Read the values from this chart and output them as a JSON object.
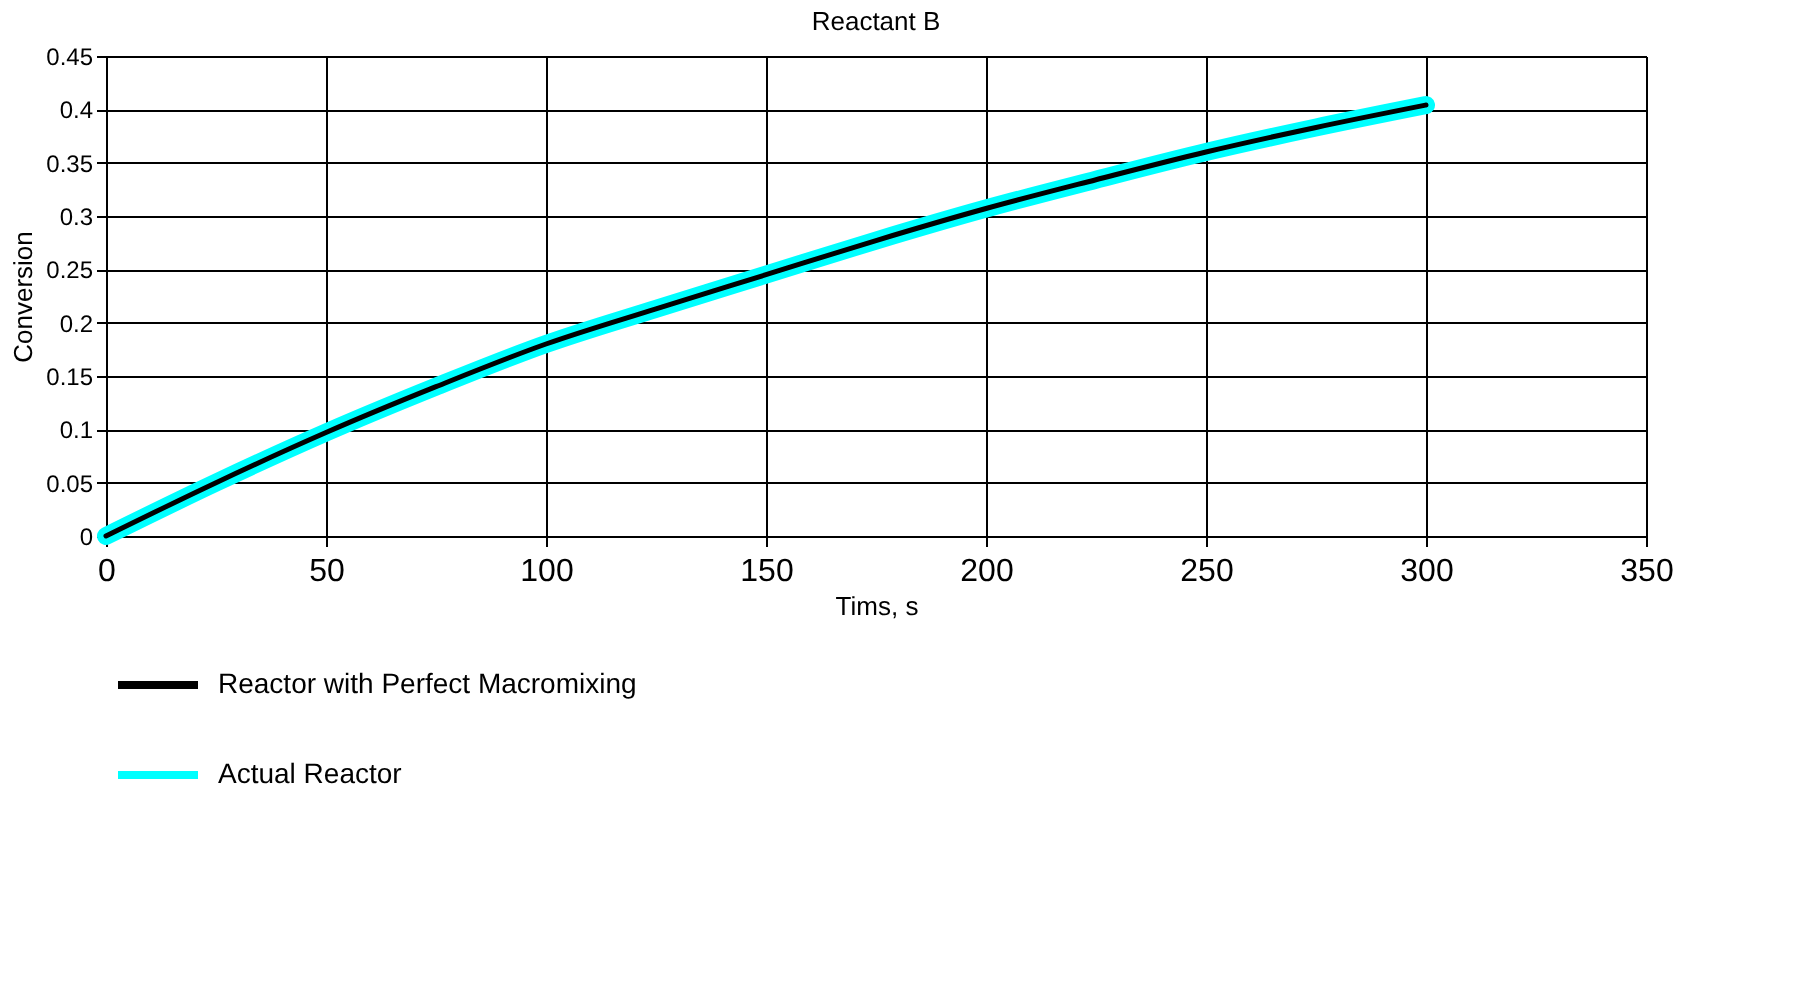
{
  "chart_data": {
    "type": "line",
    "title": "Reactant B",
    "xlabel": "Tims, s",
    "ylabel": "Conversion",
    "x": [
      0,
      25,
      50,
      75,
      100,
      125,
      150,
      175,
      200,
      225,
      250,
      275,
      300
    ],
    "series": [
      {
        "name": "Actual Reactor",
        "color": "#00ffff",
        "values": [
          0,
          0.05,
          0.097,
          0.14,
          0.18,
          0.213,
          0.245,
          0.277,
          0.307,
          0.334,
          0.36,
          0.383,
          0.404
        ]
      },
      {
        "name": "Reactor with Perfect Macromixing",
        "color": "#000000",
        "values": [
          0,
          0.05,
          0.097,
          0.14,
          0.18,
          0.213,
          0.245,
          0.277,
          0.307,
          0.334,
          0.36,
          0.383,
          0.404
        ]
      }
    ],
    "xlim": [
      0,
      350
    ],
    "xticks": [
      0,
      50,
      100,
      150,
      200,
      250,
      300,
      350
    ],
    "ylim": [
      0,
      0.45
    ],
    "yticks": [
      0,
      0.05,
      0.1,
      0.15,
      0.2,
      0.25,
      0.3,
      0.35,
      0.4,
      0.45
    ],
    "grid": true,
    "legend": "bottom left",
    "line_style": "solid"
  }
}
